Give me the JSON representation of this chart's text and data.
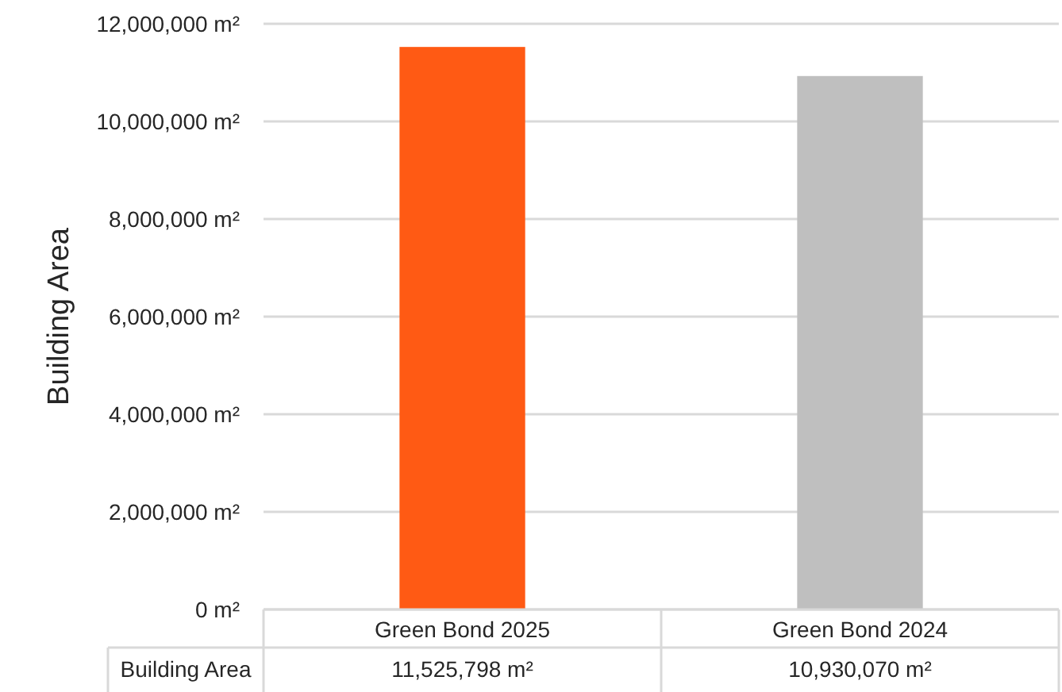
{
  "chart_data": {
    "type": "bar",
    "ylabel": "Building Area",
    "categories": [
      "Green Bond 2025",
      "Green Bond 2024"
    ],
    "series": [
      {
        "name": "Building Area",
        "colors": [
          "#ff5a14",
          "#bfbfbf"
        ],
        "values": [
          11525798,
          10930070
        ],
        "value_labels": [
          "11,525,798 m²",
          "10,930,070 m²"
        ]
      }
    ],
    "ylim": [
      0,
      12000000
    ],
    "yticks": [
      {
        "value": 0,
        "label": "0 m²"
      },
      {
        "value": 2000000,
        "label": "2,000,000 m²"
      },
      {
        "value": 4000000,
        "label": "4,000,000 m²"
      },
      {
        "value": 6000000,
        "label": "6,000,000 m²"
      },
      {
        "value": 8000000,
        "label": "8,000,000 m²"
      },
      {
        "value": 10000000,
        "label": "10,000,000 m²"
      },
      {
        "value": 12000000,
        "label": "12,000,000 m²"
      }
    ],
    "grid": "y"
  }
}
